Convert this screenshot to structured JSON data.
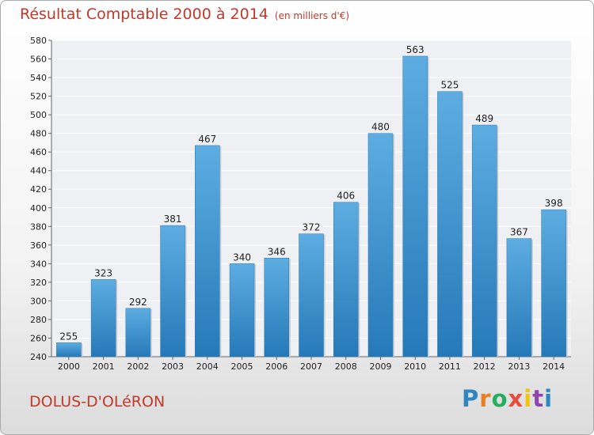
{
  "header": {
    "title": "Résultat Comptable 2000 à 2014",
    "unit": "(en milliers d'€)"
  },
  "footer": {
    "place": "DOLUS-D'OLéRON",
    "brand": [
      "P",
      "r",
      "o",
      "x",
      "i",
      "t",
      "i"
    ],
    "brand_colors": [
      "#2e86c1",
      "#e67e22",
      "#27ae60",
      "#e74c3c",
      "#f1c40f",
      "#8e44ad",
      "#2e86c1"
    ]
  },
  "chart_data": {
    "type": "bar",
    "categories": [
      "2000",
      "2001",
      "2002",
      "2003",
      "2004",
      "2005",
      "2006",
      "2007",
      "2008",
      "2009",
      "2010",
      "2011",
      "2012",
      "2013",
      "2014"
    ],
    "values": [
      255,
      323,
      292,
      381,
      467,
      340,
      346,
      372,
      406,
      480,
      563,
      525,
      489,
      367,
      398
    ],
    "ylim": [
      240,
      580
    ],
    "yticks": [
      240,
      260,
      280,
      300,
      320,
      340,
      360,
      380,
      400,
      420,
      440,
      460,
      480,
      500,
      520,
      540,
      560,
      580
    ],
    "grid": true,
    "bar_color": "#3b96d8"
  }
}
